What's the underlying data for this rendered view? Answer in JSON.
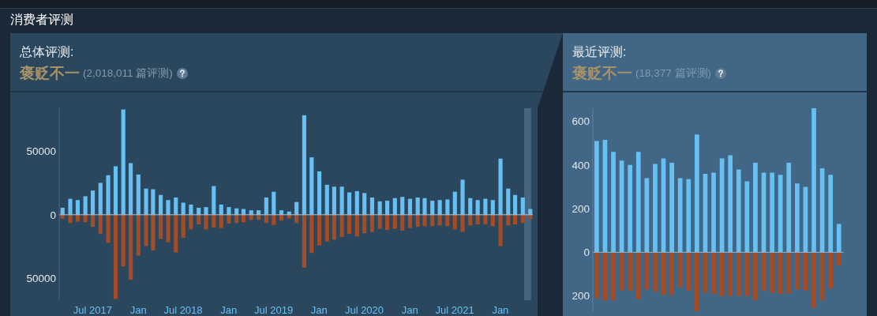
{
  "chart_data": [
    {
      "type": "bar",
      "title": "总体评测:",
      "subtitle": "褒贬不一",
      "annotations": [
        "(2,018,011 篇评测)",
        "消费者评测"
      ],
      "x": [
        "2017-03",
        "2017-04",
        "2017-05",
        "2017-06",
        "2017-07",
        "2017-08",
        "2017-09",
        "2017-10",
        "2017-11",
        "2017-12",
        "2018-01",
        "2018-02",
        "2018-03",
        "2018-04",
        "2018-05",
        "2018-06",
        "2018-07",
        "2018-08",
        "2018-09",
        "2018-10",
        "2018-11",
        "2018-12",
        "2019-01",
        "2019-02",
        "2019-03",
        "2019-04",
        "2019-05",
        "2019-06",
        "2019-07",
        "2019-08",
        "2019-09",
        "2019-10",
        "2019-11",
        "2019-12",
        "2020-01",
        "2020-02",
        "2020-03",
        "2020-04",
        "2020-05",
        "2020-06",
        "2020-07",
        "2020-08",
        "2020-09",
        "2020-10",
        "2020-11",
        "2020-12",
        "2021-01",
        "2021-02",
        "2021-03",
        "2021-04",
        "2021-05",
        "2021-06",
        "2021-07",
        "2021-08",
        "2021-09",
        "2021-10",
        "2021-11",
        "2021-12",
        "2022-01",
        "2022-02",
        "2022-03",
        "2022-04",
        "2022-05"
      ],
      "xlim": [
        "2017-02-16",
        "2022-05-12"
      ],
      "xticks": [
        {
          "value": "2017-07",
          "label": "Jul 2017"
        },
        {
          "value": "2018-01",
          "label": "Jan"
        },
        {
          "value": "2018-07",
          "label": "Jul 2018"
        },
        {
          "value": "2019-01",
          "label": "Jan"
        },
        {
          "value": "2019-07",
          "label": "Jul 2019"
        },
        {
          "value": "2020-01",
          "label": "Jan"
        },
        {
          "value": "2020-07",
          "label": "Jul 2020"
        },
        {
          "value": "2021-01",
          "label": "Jan"
        },
        {
          "value": "2021-07",
          "label": "Jul 2021"
        },
        {
          "value": "2022-01",
          "label": "Jan"
        }
      ],
      "ylim": [
        -67000,
        83500
      ],
      "yticks": [
        {
          "value": -50000,
          "label": "50000"
        },
        0,
        {
          "value": 50000,
          "label": "50000"
        }
      ],
      "stacked": true,
      "series": [
        {
          "color": "#66c0f4",
          "values": [
            5500,
            12500,
            11500,
            14500,
            19000,
            25000,
            31000,
            38000,
            82500,
            40500,
            31500,
            20500,
            20000,
            15500,
            11500,
            13500,
            9500,
            8000,
            5500,
            6000,
            22500,
            8000,
            6000,
            5000,
            4500,
            3500,
            3500,
            13500,
            18000,
            3500,
            2500,
            10000,
            78000,
            45000,
            34000,
            23500,
            22000,
            22000,
            17500,
            18500,
            17000,
            13500,
            10500,
            11000,
            13000,
            14000,
            12500,
            13500,
            13000,
            11000,
            11500,
            12000,
            18000,
            27500,
            13000,
            11500,
            12500,
            11500,
            44000,
            20500,
            15500,
            13500,
            4500
          ]
        },
        {
          "color": "#a34c25",
          "values": [
            -3000,
            -6500,
            -5500,
            -6000,
            -9500,
            -15000,
            -22000,
            -66000,
            -40500,
            -51000,
            -32000,
            -24500,
            -28000,
            -19000,
            -21500,
            -29500,
            -18000,
            -11500,
            -7500,
            -11500,
            -10000,
            -10500,
            -7000,
            -6500,
            -6000,
            -4000,
            -4000,
            -6500,
            -8000,
            -4500,
            -3000,
            -6500,
            -41500,
            -30000,
            -24000,
            -21000,
            -19500,
            -17500,
            -15000,
            -17000,
            -14500,
            -13500,
            -11000,
            -12000,
            -11000,
            -12500,
            -10500,
            -9500,
            -9000,
            -9000,
            -8500,
            -9000,
            -11500,
            -13500,
            -8500,
            -7500,
            -7500,
            -9000,
            -24500,
            -8500,
            -7500,
            -6500,
            -3500
          ]
        }
      ],
      "ref_lines": [
        {
          "axis": "y",
          "value": 0,
          "color": "#b0c4d4"
        }
      ],
      "bands": [
        {
          "axis": "x",
          "from": "2022-04-07",
          "to": "2022-05-05",
          "color": "#46657f"
        }
      ]
    },
    {
      "type": "bar",
      "title": "最近评测:",
      "subtitle": "褒贬不一",
      "annotations": [
        "(18,377 篇评测)"
      ],
      "categories": [
        null,
        null,
        null,
        null,
        null,
        null,
        null,
        null,
        null,
        null,
        null,
        null,
        null,
        null,
        null,
        null,
        null,
        null,
        null,
        null,
        null,
        null,
        null,
        null,
        null,
        null,
        null,
        null,
        null,
        null
      ],
      "ylim": [
        -270,
        660
      ],
      "yticks": [
        {
          "value": -200,
          "label": "200"
        },
        0,
        200,
        400,
        600
      ],
      "tick_labels": "y",
      "stacked": true,
      "series": [
        {
          "color": "#66c0f4",
          "values": [
            510,
            515,
            460,
            420,
            400,
            460,
            340,
            405,
            430,
            410,
            340,
            335,
            540,
            360,
            365,
            430,
            445,
            380,
            325,
            410,
            365,
            365,
            355,
            410,
            315,
            300,
            660,
            385,
            355,
            130
          ]
        },
        {
          "color": "#a34c25",
          "values": [
            -210,
            -220,
            -220,
            -175,
            -175,
            -215,
            -170,
            -180,
            -195,
            -195,
            -160,
            -175,
            -270,
            -185,
            -190,
            -200,
            -200,
            -200,
            -200,
            -220,
            -175,
            -185,
            -190,
            -190,
            -170,
            -175,
            -255,
            -220,
            -165,
            -60
          ]
        }
      ],
      "ref_lines": [
        {
          "axis": "y",
          "value": 0,
          "color": "#9db1c2"
        }
      ]
    }
  ]
}
